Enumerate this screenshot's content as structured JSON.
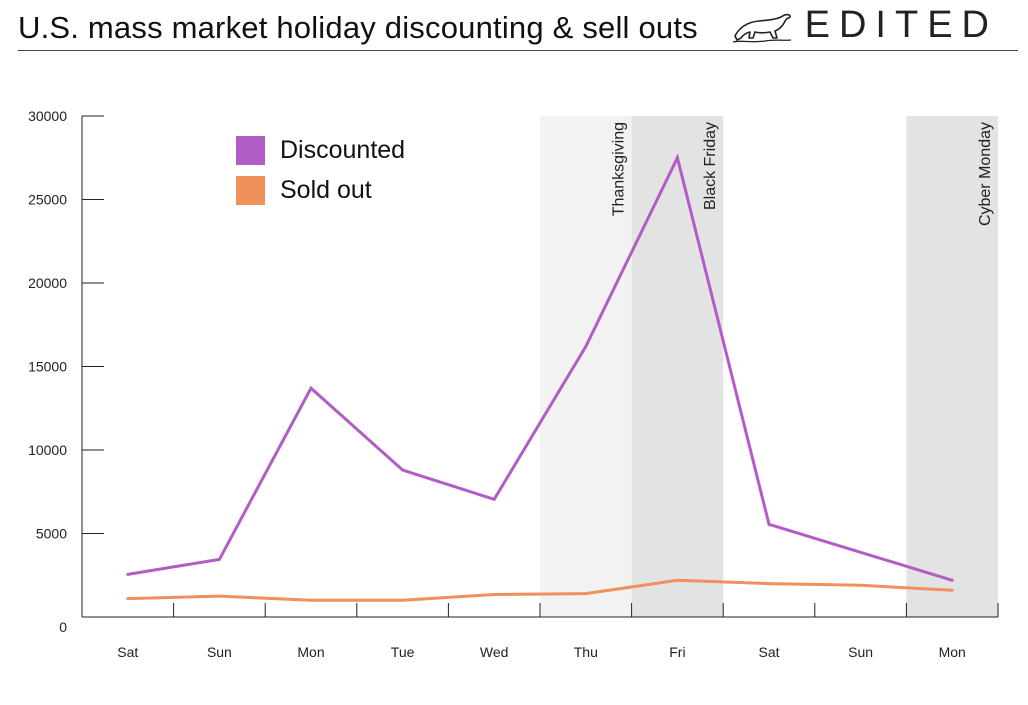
{
  "header": {
    "title": "U.S. mass market holiday discounting & sell outs",
    "brand": "EDITED",
    "brand_icon": "polar-bear-icon"
  },
  "chart_data": {
    "type": "line",
    "title": "U.S. mass market holiday discounting & sell outs",
    "xlabel": "",
    "ylabel": "",
    "categories": [
      "Sat",
      "Sun",
      "Mon",
      "Tue",
      "Wed",
      "Thu",
      "Fri",
      "Sat",
      "Sun",
      "Mon"
    ],
    "ylim": [
      0,
      30000
    ],
    "yticks": [
      0,
      5000,
      10000,
      15000,
      20000,
      25000,
      30000
    ],
    "grid": false,
    "legend_position": "top-left",
    "series": [
      {
        "name": "Discounted",
        "color": "#b25dc6",
        "values": [
          2550,
          3450,
          13700,
          8800,
          7050,
          16200,
          27500,
          5550,
          null,
          2200
        ]
      },
      {
        "name": "Sold out",
        "color": "#f0905a",
        "values": [
          1100,
          1250,
          1000,
          1000,
          1350,
          1400,
          2200,
          2000,
          1900,
          1600
        ]
      }
    ],
    "highlights": [
      {
        "label": "Thanksgiving",
        "category": "Thu",
        "color": "#f3f2f2"
      },
      {
        "label": "Black Friday",
        "category": "Fri",
        "color": "#e3e3e3"
      },
      {
        "label": "Cyber Monday",
        "category": "Mon",
        "color": "#e3e3e3"
      }
    ]
  }
}
